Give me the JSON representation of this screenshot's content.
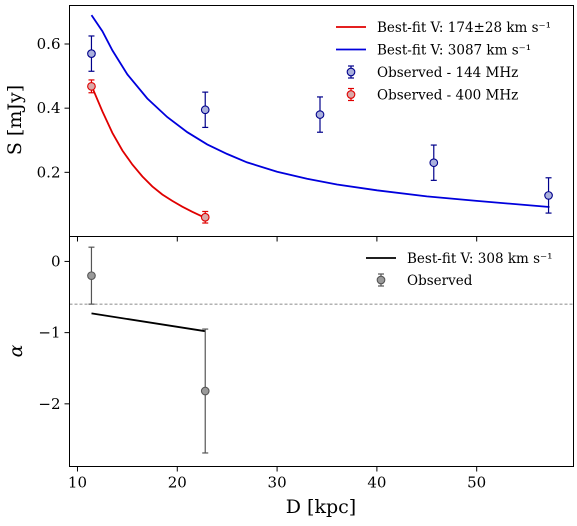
{
  "chart_data": [
    {
      "type": "line",
      "panel": "top",
      "ylabel": "S [mJy]",
      "xlim": [
        9.2,
        59.7
      ],
      "ylim": [
        0.0,
        0.72
      ],
      "yticks": [
        0.2,
        0.4,
        0.6
      ],
      "ytick_labels": [
        "0.2",
        "0.4",
        "0.6"
      ],
      "grid": false,
      "legend_position": "top-right",
      "series": [
        {
          "name": "Best-fit V: 174±28 km s⁻¹",
          "kind": "line",
          "color": "#e00000",
          "x": [
            11.4,
            12.5,
            13.5,
            14.5,
            15.5,
            16.5,
            17.5,
            18.5,
            19.5,
            20.5,
            21.5,
            22.6
          ],
          "y": [
            0.47,
            0.39,
            0.323,
            0.268,
            0.224,
            0.187,
            0.156,
            0.131,
            0.111,
            0.093,
            0.077,
            0.061
          ]
        },
        {
          "name": "Best-fit V: 3087 km s⁻¹",
          "kind": "line",
          "color": "#0000dd",
          "x": [
            11.4,
            12.5,
            13.5,
            15,
            17,
            19,
            21,
            23,
            25,
            27,
            30,
            33,
            36,
            40,
            45,
            50,
            57.3
          ],
          "y": [
            0.69,
            0.64,
            0.58,
            0.505,
            0.43,
            0.372,
            0.325,
            0.287,
            0.257,
            0.231,
            0.202,
            0.18,
            0.162,
            0.144,
            0.125,
            0.111,
            0.092
          ]
        },
        {
          "name": "Observed - 144 MHz",
          "kind": "errorbar",
          "color": "#00008b",
          "fill": "#aab0dc",
          "x": [
            11.4,
            22.8,
            34.3,
            45.7,
            57.2
          ],
          "y": [
            0.57,
            0.395,
            0.38,
            0.23,
            0.128
          ],
          "yerr": [
            0.055,
            0.055,
            0.055,
            0.055,
            0.055
          ]
        },
        {
          "name": "Observed - 400 MHz",
          "kind": "errorbar",
          "color": "#e00000",
          "fill": "#d9a8a8",
          "x": [
            11.4,
            22.8
          ],
          "y": [
            0.468,
            0.06
          ],
          "yerr": [
            0.02,
            0.018
          ]
        }
      ]
    },
    {
      "type": "line",
      "panel": "bottom",
      "xlabel": "D [kpc]",
      "ylabel": "α",
      "xlim": [
        9.2,
        59.7
      ],
      "ylim": [
        -2.88,
        0.35
      ],
      "xticks": [
        10,
        20,
        30,
        40,
        50
      ],
      "xtick_labels": [
        "10",
        "20",
        "30",
        "40",
        "50"
      ],
      "yticks": [
        0,
        -1,
        -2
      ],
      "ytick_labels": [
        "0",
        "−1",
        "−2"
      ],
      "reference_line": {
        "y": -0.6,
        "style": "dashed",
        "color": "#666666"
      },
      "grid": false,
      "legend_position": "top-right",
      "series": [
        {
          "name": "Best-fit V: 308 km s⁻¹",
          "kind": "line",
          "color": "#000000",
          "x": [
            11.4,
            22.8
          ],
          "y": [
            -0.73,
            -0.98
          ]
        },
        {
          "name": "Observed",
          "kind": "errorbar",
          "color": "#555555",
          "fill": "#9a9a9a",
          "x": [
            11.4,
            22.8
          ],
          "y": [
            -0.2,
            -1.82
          ],
          "yerr": [
            0.4,
            0.87
          ]
        }
      ]
    }
  ]
}
